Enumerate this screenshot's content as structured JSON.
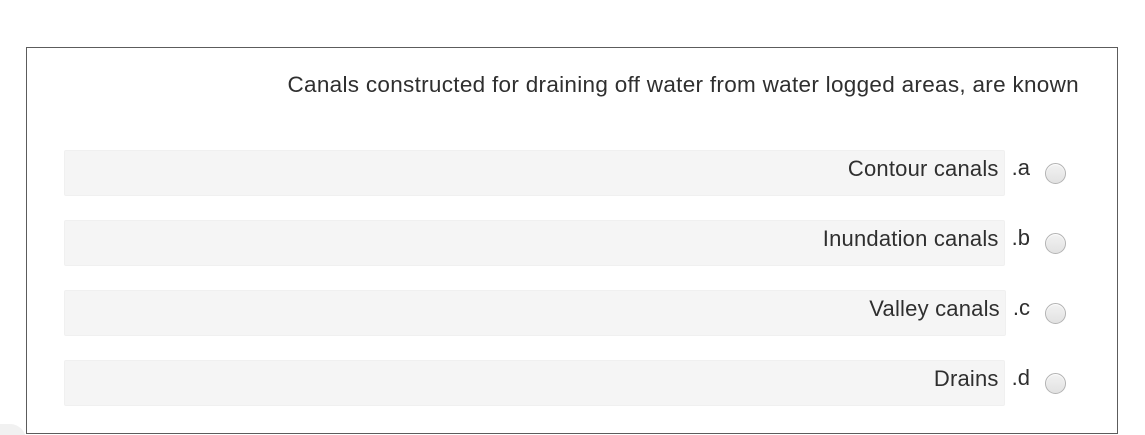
{
  "question": {
    "text": "Canals constructed for draining off water from water logged areas, are known"
  },
  "options": [
    {
      "label": ".a",
      "text": "Contour canals",
      "selected": false
    },
    {
      "label": ".b",
      "text": "Inundation canals",
      "selected": false
    },
    {
      "label": ".c",
      "text": "Valley canals",
      "selected": false
    },
    {
      "label": ".d",
      "text": "Drains",
      "selected": false
    }
  ],
  "colors": {
    "card-border": "#5c5c5c",
    "bar-bg": "#f5f5f5",
    "text": "#2f2f2f"
  }
}
